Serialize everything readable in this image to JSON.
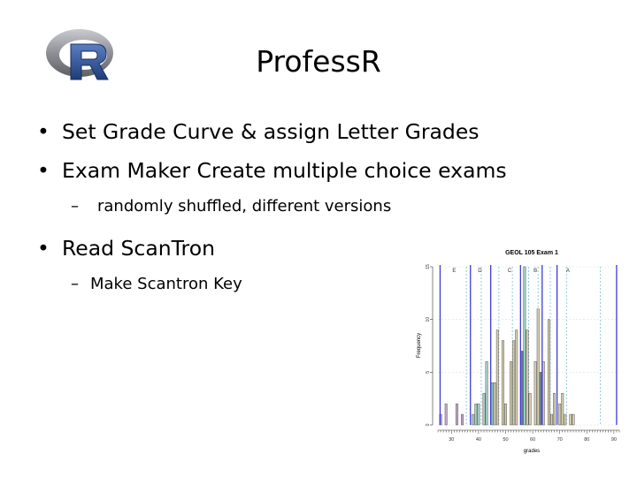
{
  "title": "ProfessR",
  "bullets": [
    {
      "text": "Set Grade Curve & assign Letter Grades"
    },
    {
      "text": "Exam Maker Create multiple choice exams"
    },
    {
      "text": "Read ScanTron"
    }
  ],
  "sub_bullets": [
    {
      "dash": "–",
      "text": "randomly shuffled, different versions"
    },
    {
      "dash": "–",
      "text": "Make Scantron Key"
    }
  ],
  "bullet_glyph": "•",
  "logo": {
    "letter": "R",
    "ring_color": "#8e9096",
    "letter_color": "#2d4f8c"
  },
  "chart_data": {
    "type": "bar",
    "title": "GEOL 105 Exam 1",
    "xlabel": "grades",
    "ylabel": "Frequency",
    "xlim": [
      25,
      92
    ],
    "ylim": [
      0,
      15
    ],
    "x_ticks": [
      30,
      40,
      50,
      60,
      70,
      80,
      90
    ],
    "y_ticks": [
      0,
      5,
      10,
      15
    ],
    "bin_width": 1,
    "bins": [
      {
        "x": 26,
        "v": 1,
        "color": "#c6a6cc"
      },
      {
        "x": 28,
        "v": 2,
        "color": "#c6a6cc"
      },
      {
        "x": 30,
        "v": 0,
        "color": "#c6a6cc"
      },
      {
        "x": 32,
        "v": 2,
        "color": "#c6a6cc"
      },
      {
        "x": 34,
        "v": 1,
        "color": "#c6a6cc"
      },
      {
        "x": 38,
        "v": 1,
        "color": "#a9cfc6"
      },
      {
        "x": 39,
        "v": 2,
        "color": "#a9cfc6"
      },
      {
        "x": 40,
        "v": 2,
        "color": "#a9cfc6"
      },
      {
        "x": 42,
        "v": 3,
        "color": "#a9cfc6"
      },
      {
        "x": 43,
        "v": 6,
        "color": "#a9cfc6"
      },
      {
        "x": 45,
        "v": 4,
        "color": "#8fc7bf"
      },
      {
        "x": 46,
        "v": 4,
        "color": "#d7cfae"
      },
      {
        "x": 47,
        "v": 9,
        "color": "#d7cfae"
      },
      {
        "x": 49,
        "v": 8,
        "color": "#d7cfae"
      },
      {
        "x": 50,
        "v": 2,
        "color": "#d7cfae"
      },
      {
        "x": 52,
        "v": 6,
        "color": "#d7cfae"
      },
      {
        "x": 53,
        "v": 8,
        "color": "#d7cfae"
      },
      {
        "x": 54,
        "v": 9,
        "color": "#d7cfae"
      },
      {
        "x": 56,
        "v": 7,
        "color": "#6b7fa7"
      },
      {
        "x": 57,
        "v": 15,
        "color": "#9bd2c5"
      },
      {
        "x": 58,
        "v": 9,
        "color": "#d7cfae"
      },
      {
        "x": 59,
        "v": 3,
        "color": "#d7cfae"
      },
      {
        "x": 61,
        "v": 6,
        "color": "#d7cfae"
      },
      {
        "x": 62,
        "v": 11,
        "color": "#d7cfae"
      },
      {
        "x": 63,
        "v": 5,
        "color": "#6b7fa7"
      },
      {
        "x": 64,
        "v": 6,
        "color": "#d7cfae"
      },
      {
        "x": 66,
        "v": 10,
        "color": "#d7cfae"
      },
      {
        "x": 67,
        "v": 1,
        "color": "#d7cfae"
      },
      {
        "x": 68,
        "v": 3,
        "color": "#d7cfae"
      },
      {
        "x": 70,
        "v": 2,
        "color": "#d7cfae"
      },
      {
        "x": 71,
        "v": 3,
        "color": "#d7cfae"
      },
      {
        "x": 72,
        "v": 1,
        "color": "#d7cfae"
      },
      {
        "x": 74,
        "v": 1,
        "color": "#d7cfae"
      },
      {
        "x": 75,
        "v": 1,
        "color": "#d7cfae"
      }
    ],
    "grade_lines": [
      {
        "x": 25.8,
        "letter": "",
        "style": "solid"
      },
      {
        "x": 37,
        "letter": "E",
        "style": "solid"
      },
      {
        "x": 44.5,
        "letter": "D",
        "style": "solid"
      },
      {
        "x": 55.5,
        "letter": "C",
        "style": "solid"
      },
      {
        "x": 63.5,
        "letter": "B",
        "style": "solid"
      },
      {
        "x": 69,
        "letter": "A",
        "style": "solid"
      },
      {
        "x": 91,
        "letter": "",
        "style": "solid"
      }
    ],
    "grade_letters": [
      {
        "x": 31,
        "letter": "E"
      },
      {
        "x": 40.5,
        "letter": "D"
      },
      {
        "x": 51.5,
        "letter": "C"
      },
      {
        "x": 61,
        "letter": "B"
      },
      {
        "x": 73,
        "letter": "A"
      }
    ],
    "dashed_lines": [
      35.5,
      41,
      47.5,
      52.5,
      58.5,
      62,
      66.5,
      72.5,
      85
    ],
    "line_color": "#3c3cd8",
    "dash_color": "#86c6d6"
  }
}
